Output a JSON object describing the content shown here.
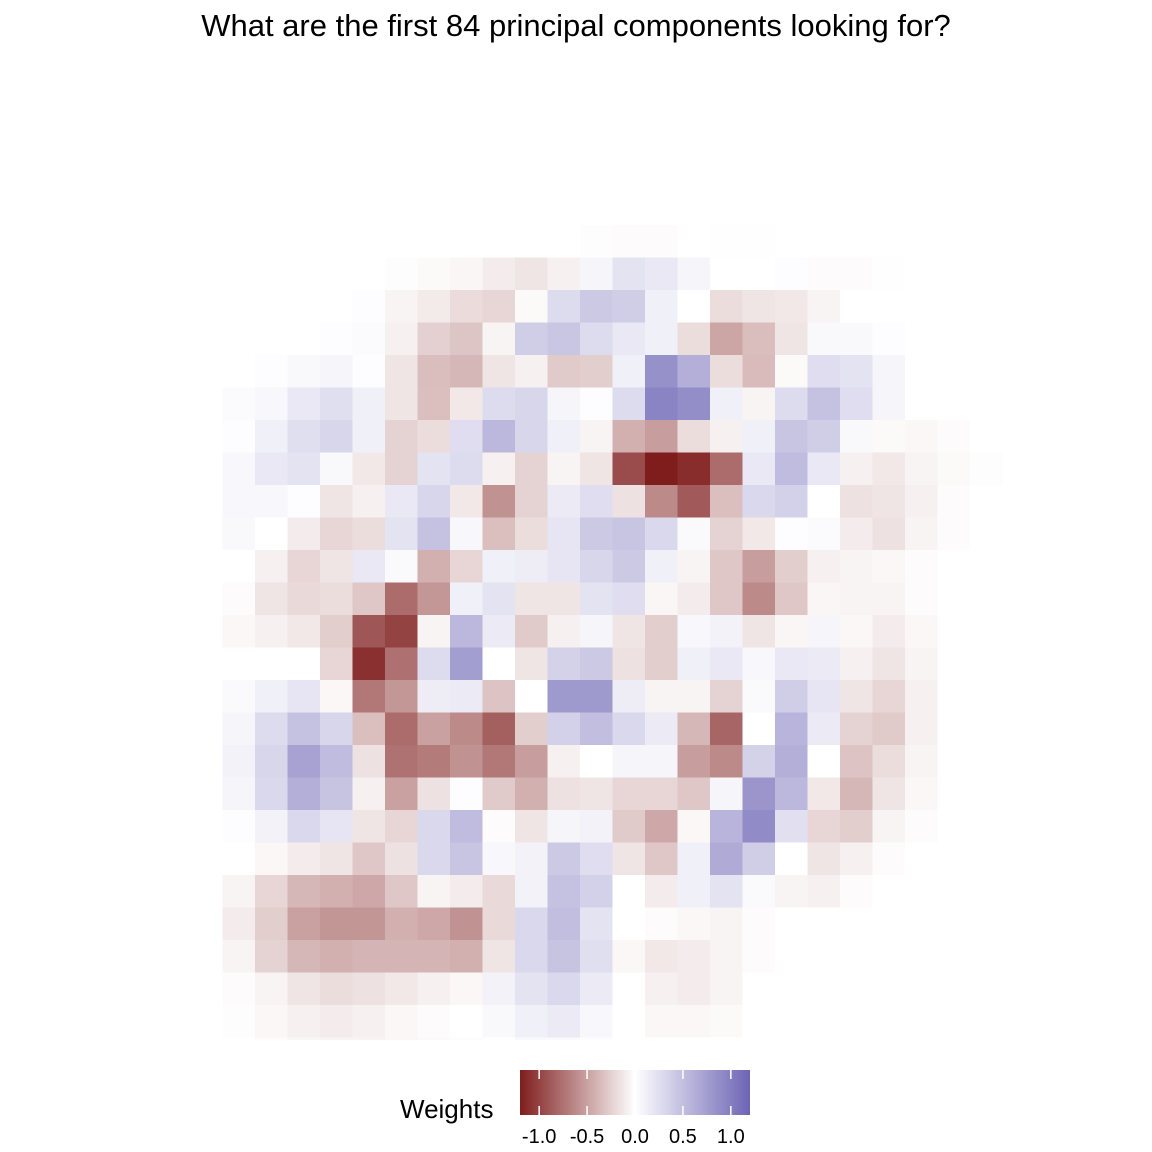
{
  "chart_data": {
    "type": "heatmap",
    "title": "What are the first 84 principal components looking for?",
    "xlabel": "",
    "ylabel": "",
    "grid": false,
    "legend": {
      "title": "Weights",
      "position": "bottom",
      "range": [
        -1.2,
        1.2
      ],
      "ticks": [
        -1.0,
        -0.5,
        0.0,
        0.5,
        1.0
      ],
      "tick_labels": [
        "-1.0",
        "-0.5",
        "0.0",
        "0.5",
        "1.0"
      ],
      "colors": {
        "low": "#7f1d1d",
        "mid": "#ffffff",
        "high": "#6c64b4"
      }
    },
    "dims": [
      28,
      28
    ],
    "origin_row": 4,
    "origin_col": 5,
    "values": [
      [
        0,
        0,
        0,
        0,
        0,
        0,
        0,
        0,
        0,
        0,
        0,
        -0.01,
        -0.02,
        -0.02,
        0,
        0.01,
        0.01,
        0,
        0,
        0,
        0,
        0,
        0,
        0
      ],
      [
        0,
        0,
        0,
        0,
        0,
        -0.01,
        -0.03,
        -0.05,
        -0.1,
        -0.14,
        -0.08,
        0.08,
        0.22,
        0.18,
        0.08,
        0,
        0,
        0.02,
        -0.02,
        -0.02,
        0.01,
        0,
        0,
        0
      ],
      [
        0,
        0,
        0,
        0,
        0.02,
        -0.06,
        -0.11,
        -0.19,
        -0.22,
        -0.03,
        0.28,
        0.42,
        0.38,
        0.12,
        0,
        -0.18,
        -0.14,
        -0.12,
        -0.06,
        0,
        0,
        0,
        0,
        0
      ],
      [
        0,
        0,
        0,
        0.02,
        0.03,
        -0.08,
        -0.25,
        -0.31,
        -0.06,
        0.38,
        0.44,
        0.28,
        0.18,
        0.12,
        -0.18,
        -0.48,
        -0.35,
        -0.14,
        0.05,
        0.05,
        0.02,
        0,
        0,
        0
      ],
      [
        0,
        0.02,
        0.05,
        0.08,
        0.02,
        -0.14,
        -0.35,
        -0.38,
        -0.14,
        -0.08,
        -0.28,
        -0.26,
        0.12,
        0.85,
        0.62,
        -0.18,
        -0.36,
        -0.03,
        0.26,
        0.22,
        0.08,
        0,
        0,
        0
      ],
      [
        0.03,
        0.06,
        0.18,
        0.25,
        0.12,
        -0.14,
        -0.34,
        -0.12,
        0.28,
        0.32,
        0.08,
        0.02,
        0.28,
        0.95,
        0.88,
        0.12,
        -0.06,
        0.28,
        0.48,
        0.26,
        0.08,
        0,
        0,
        0
      ],
      [
        0.02,
        0.12,
        0.25,
        0.32,
        0.12,
        -0.24,
        -0.18,
        0.26,
        0.55,
        0.32,
        0.12,
        -0.06,
        -0.42,
        -0.52,
        -0.18,
        -0.08,
        0.12,
        0.45,
        0.38,
        0.05,
        -0.03,
        -0.04,
        -0.02,
        0
      ],
      [
        0.06,
        0.18,
        0.22,
        0.05,
        -0.12,
        -0.24,
        0.22,
        0.28,
        -0.08,
        -0.24,
        -0.06,
        -0.14,
        -0.95,
        -1.25,
        -1.12,
        -0.78,
        0.18,
        0.52,
        0.18,
        -0.08,
        -0.12,
        -0.06,
        -0.03,
        -0.01
      ],
      [
        0.06,
        0.06,
        0.02,
        -0.14,
        -0.08,
        0.18,
        0.32,
        -0.12,
        -0.58,
        -0.24,
        0.16,
        0.26,
        -0.16,
        -0.62,
        -0.88,
        -0.34,
        0.3,
        0.36,
        0,
        -0.16,
        -0.14,
        -0.08,
        -0.02,
        0
      ],
      [
        0.05,
        0,
        -0.1,
        -0.22,
        -0.18,
        0.22,
        0.48,
        0.06,
        -0.34,
        -0.18,
        0.2,
        0.42,
        0.45,
        0.3,
        0.04,
        -0.24,
        -0.12,
        0.02,
        0.03,
        -0.1,
        -0.16,
        -0.06,
        -0.02,
        0
      ],
      [
        0,
        -0.08,
        -0.22,
        -0.14,
        0.18,
        0.04,
        -0.42,
        -0.22,
        0.12,
        0.14,
        0.2,
        0.32,
        0.42,
        0.12,
        -0.06,
        -0.3,
        -0.52,
        -0.26,
        -0.08,
        -0.06,
        -0.04,
        -0.02,
        0,
        0
      ],
      [
        -0.02,
        -0.14,
        -0.2,
        -0.18,
        -0.3,
        -0.78,
        -0.55,
        0.12,
        0.22,
        -0.14,
        -0.14,
        0.22,
        0.26,
        -0.05,
        -0.1,
        -0.3,
        -0.62,
        -0.3,
        -0.05,
        -0.06,
        -0.06,
        -0.02,
        0,
        0
      ],
      [
        -0.04,
        -0.08,
        -0.12,
        -0.26,
        -0.9,
        -1.0,
        -0.06,
        0.55,
        0.16,
        -0.28,
        -0.08,
        0.08,
        -0.14,
        -0.26,
        0.06,
        0.1,
        -0.14,
        -0.05,
        0.08,
        -0.04,
        -0.1,
        -0.04,
        0,
        0
      ],
      [
        0,
        0,
        0,
        -0.22,
        -1.1,
        -0.76,
        0.28,
        0.75,
        0,
        -0.14,
        0.35,
        0.42,
        -0.16,
        -0.26,
        0.12,
        0.18,
        0.06,
        0.18,
        0.16,
        -0.08,
        -0.14,
        -0.06,
        0,
        0
      ],
      [
        0.04,
        0.12,
        0.2,
        -0.04,
        -0.72,
        -0.55,
        0.14,
        0.16,
        -0.32,
        0,
        0.78,
        0.78,
        0.14,
        -0.06,
        -0.06,
        -0.24,
        0.04,
        0.38,
        0.2,
        -0.14,
        -0.22,
        -0.08,
        0,
        0
      ],
      [
        0.08,
        0.28,
        0.48,
        0.32,
        -0.34,
        -0.78,
        -0.5,
        -0.62,
        -0.85,
        -0.26,
        0.36,
        0.5,
        0.3,
        0.16,
        -0.38,
        -0.82,
        0,
        0.58,
        0.16,
        -0.24,
        -0.28,
        -0.08,
        0,
        0
      ],
      [
        0.1,
        0.32,
        0.72,
        0.52,
        -0.16,
        -0.75,
        -0.7,
        -0.58,
        -0.72,
        -0.52,
        -0.08,
        0,
        0.08,
        0.08,
        -0.52,
        -0.62,
        0.35,
        0.62,
        0,
        -0.32,
        -0.18,
        -0.06,
        0,
        0
      ],
      [
        0.08,
        0.3,
        0.62,
        0.46,
        -0.08,
        -0.5,
        -0.16,
        0.02,
        -0.28,
        -0.42,
        -0.16,
        -0.14,
        -0.22,
        -0.22,
        -0.3,
        0.08,
        0.82,
        0.55,
        -0.12,
        -0.38,
        -0.14,
        -0.04,
        0,
        0
      ],
      [
        0.02,
        0.1,
        0.3,
        0.2,
        -0.14,
        -0.22,
        0.3,
        0.52,
        -0.02,
        -0.14,
        0.08,
        0.1,
        -0.28,
        -0.46,
        -0.04,
        0.58,
        0.9,
        0.24,
        -0.22,
        -0.26,
        -0.06,
        -0.02,
        0,
        0
      ],
      [
        0,
        -0.04,
        -0.1,
        -0.14,
        -0.3,
        -0.16,
        0.3,
        0.45,
        0.06,
        0.1,
        0.42,
        0.26,
        -0.14,
        -0.3,
        0.12,
        0.65,
        0.38,
        0,
        -0.14,
        -0.08,
        -0.02,
        0,
        0,
        0
      ],
      [
        -0.06,
        -0.22,
        -0.38,
        -0.42,
        -0.46,
        -0.3,
        -0.06,
        -0.1,
        -0.2,
        0.1,
        0.48,
        0.36,
        0,
        -0.1,
        0.12,
        0.22,
        0.04,
        -0.06,
        -0.08,
        -0.02,
        0,
        0,
        0,
        0
      ],
      [
        -0.1,
        -0.26,
        -0.5,
        -0.56,
        -0.56,
        -0.42,
        -0.46,
        -0.58,
        -0.2,
        0.3,
        0.5,
        0.22,
        0,
        -0.02,
        -0.04,
        -0.06,
        -0.02,
        0,
        0,
        0,
        0,
        0,
        0,
        0
      ],
      [
        -0.06,
        -0.24,
        -0.38,
        -0.42,
        -0.4,
        -0.4,
        -0.4,
        -0.42,
        -0.14,
        0.3,
        0.46,
        0.25,
        -0.04,
        -0.12,
        -0.1,
        -0.06,
        -0.02,
        0,
        0,
        0,
        0,
        0,
        0,
        0
      ],
      [
        -0.02,
        -0.06,
        -0.14,
        -0.18,
        -0.16,
        -0.12,
        -0.08,
        -0.04,
        0.1,
        0.22,
        0.3,
        0.16,
        0,
        -0.08,
        -0.1,
        -0.06,
        0,
        0,
        0,
        0,
        0,
        0,
        0,
        0
      ],
      [
        -0.01,
        -0.04,
        -0.08,
        -0.1,
        -0.08,
        -0.04,
        -0.02,
        0,
        0.05,
        0.12,
        0.16,
        0.06,
        0,
        -0.04,
        -0.04,
        -0.03,
        0,
        0,
        0,
        0,
        0,
        0,
        0,
        0
      ],
      [
        0,
        -0.02,
        -0.04,
        -0.06,
        -0.06,
        -0.04,
        -0.03,
        -0.02,
        0,
        0.05,
        0.04,
        0.02,
        0,
        0,
        0,
        0,
        0,
        0,
        0,
        0,
        0,
        0,
        0,
        0
      ]
    ]
  }
}
